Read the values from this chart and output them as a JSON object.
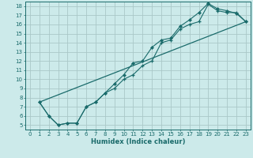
{
  "xlabel": "Humidex (Indice chaleur)",
  "bg_color": "#cceaea",
  "grid_color": "#aac8c8",
  "line_color": "#1a6b6b",
  "xlim": [
    -0.5,
    23.5
  ],
  "ylim": [
    4.5,
    18.5
  ],
  "xticks": [
    0,
    1,
    2,
    3,
    4,
    5,
    6,
    7,
    8,
    9,
    10,
    11,
    12,
    13,
    14,
    15,
    16,
    17,
    18,
    19,
    20,
    21,
    22,
    23
  ],
  "yticks": [
    5,
    6,
    7,
    8,
    9,
    10,
    11,
    12,
    13,
    14,
    15,
    16,
    17,
    18
  ],
  "line1_x": [
    1,
    2,
    3,
    4,
    5,
    6,
    7,
    8,
    9,
    10,
    11,
    12,
    13,
    14,
    15,
    16,
    17,
    18,
    19,
    20,
    21,
    22,
    23
  ],
  "line1_y": [
    7.5,
    6.0,
    5.0,
    5.2,
    5.2,
    7.0,
    7.5,
    8.5,
    9.0,
    10.0,
    10.5,
    11.5,
    12.0,
    14.0,
    14.3,
    15.5,
    16.0,
    16.3,
    18.2,
    17.5,
    17.3,
    17.3,
    16.3
  ],
  "line2_x": [
    1,
    2,
    3,
    4,
    5,
    6,
    7,
    8,
    9,
    10,
    11,
    12,
    13,
    14,
    15,
    16,
    17,
    18,
    19,
    20,
    21,
    22,
    23
  ],
  "line2_y": [
    7.5,
    6.0,
    5.0,
    5.2,
    5.2,
    7.0,
    7.5,
    8.5,
    9.5,
    10.5,
    11.8,
    12.0,
    13.5,
    14.3,
    14.5,
    15.8,
    16.5,
    17.3,
    18.3,
    17.7,
    17.5,
    17.2,
    16.3
  ],
  "line3_x": [
    1,
    23
  ],
  "line3_y": [
    7.5,
    16.3
  ]
}
